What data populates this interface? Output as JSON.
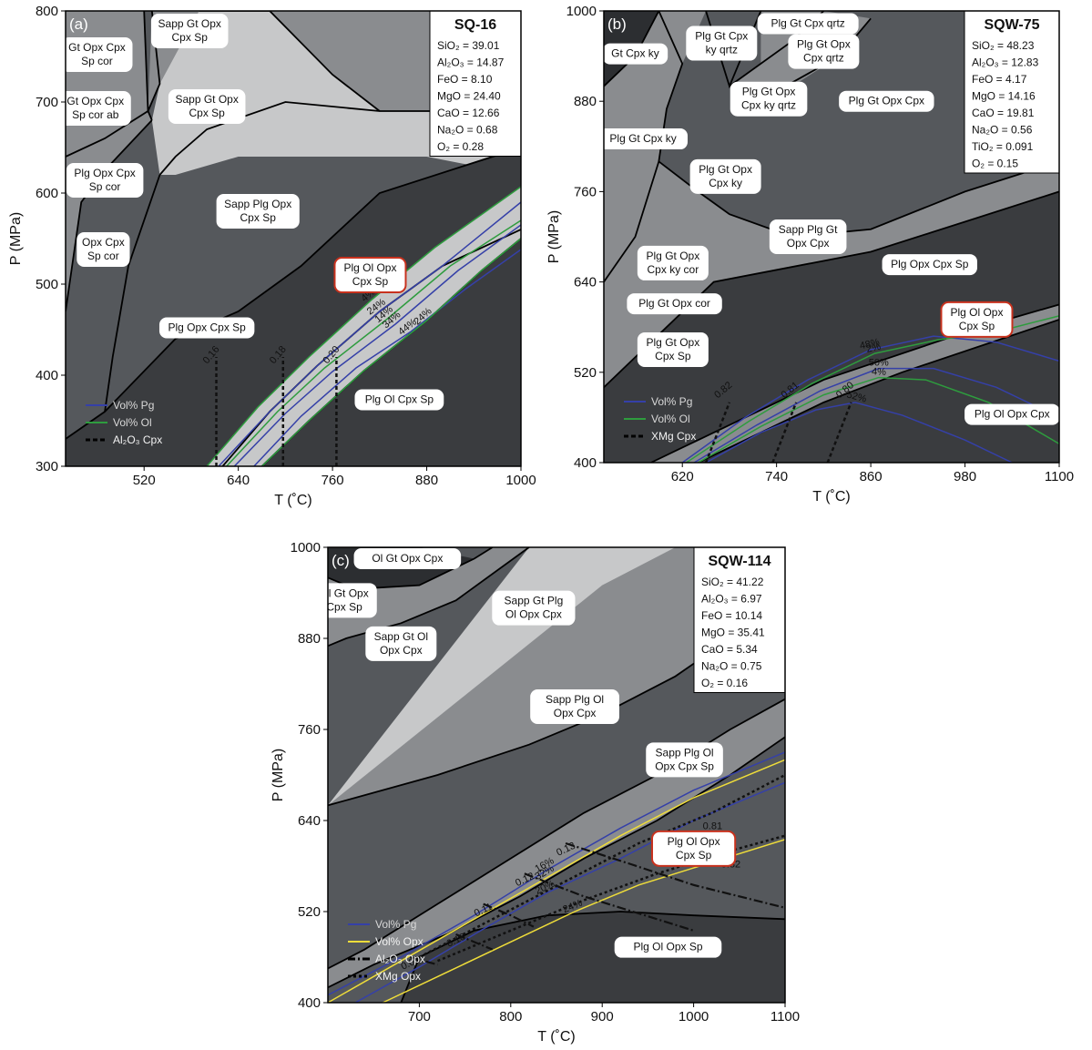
{
  "colors": {
    "field_dark": "#3a3c3f",
    "field_darker": "#2c2e31",
    "field_mid": "#55585c",
    "field_light": "#8a8c8f",
    "field_lighter": "#c7c8c9",
    "boundary": "#000000",
    "pg": "#3540a8",
    "ol": "#2e9c3e",
    "opx": "#efdd3a",
    "highlight_border": "#c8321e"
  },
  "chart_data": [
    {
      "type": "line",
      "panel": "(a)",
      "sample": "SQ-16",
      "xlabel": "T (˚C)",
      "ylabel": "P (MPa)",
      "xlim": [
        420,
        1000
      ],
      "ylim": [
        300,
        800
      ],
      "xticks": [
        520,
        640,
        760,
        880,
        1000
      ],
      "yticks": [
        300,
        400,
        500,
        600,
        700,
        800
      ],
      "composition": [
        "SiO₂ = 39.01",
        "Al₂O₃ = 14.87",
        "FeO = 8.10",
        "MgO = 24.40",
        "CaO = 12.66",
        "Na₂O = 0.68",
        "O₂ = 0.28"
      ],
      "legend": [
        {
          "label": "Vol% Pg",
          "style": "pg"
        },
        {
          "label": "Vol% Ol",
          "style": "ol"
        },
        {
          "label": "Al₂O₃ Cpx",
          "style": "dash"
        }
      ],
      "fields": [
        {
          "label": [
            "Gt Opx Cpx",
            "Sp cor"
          ],
          "T": 460,
          "P": 752
        },
        {
          "label": [
            "Gt Opx Cpx",
            "Sp cor ab"
          ],
          "T": 458,
          "P": 693
        },
        {
          "label": [
            "Sapp Gt Opx",
            "Cpx Sp"
          ],
          "T": 578,
          "P": 778
        },
        {
          "label": [
            "Sapp Gt Opx",
            "Cpx Sp"
          ],
          "T": 600,
          "P": 695
        },
        {
          "label": [
            "Plg Opx Cpx",
            "Sp cor"
          ],
          "T": 470,
          "P": 614
        },
        {
          "label": [
            "Sapp Plg Opx",
            "Cpx Sp"
          ],
          "T": 665,
          "P": 580
        },
        {
          "label": [
            "Opx Cpx",
            "Sp cor"
          ],
          "T": 468,
          "P": 538
        },
        {
          "label": [
            "Plg Ol Opx",
            "Cpx Sp"
          ],
          "T": 808,
          "P": 510,
          "highlight": true
        },
        {
          "label": [
            "Plg Opx Cpx Sp"
          ],
          "T": 600,
          "P": 452
        },
        {
          "label": [
            "Plg Ol Cpx Sp"
          ],
          "T": 845,
          "P": 373
        }
      ],
      "isopleths": [
        {
          "kind": "pg",
          "label": "24%",
          "points": [
            [
              615,
              300
            ],
            [
              680,
              360
            ],
            [
              740,
              410
            ],
            [
              820,
              470
            ],
            [
              900,
              520
            ],
            [
              1000,
              590
            ]
          ]
        },
        {
          "kind": "ol",
          "label": "4%",
          "points": [
            [
              600,
              300
            ],
            [
              665,
              365
            ],
            [
              730,
              420
            ],
            [
              810,
              483
            ],
            [
              890,
              540
            ],
            [
              1000,
              607
            ]
          ]
        },
        {
          "kind": "ol",
          "label": "14%",
          "points": [
            [
              625,
              300
            ],
            [
              690,
              360
            ],
            [
              750,
              408
            ],
            [
              830,
              462
            ],
            [
              910,
              520
            ],
            [
              1000,
              570
            ]
          ]
        },
        {
          "kind": "pg",
          "label": "34%",
          "points": [
            [
              635,
              300
            ],
            [
              700,
              358
            ],
            [
              760,
              404
            ],
            [
              840,
              456
            ],
            [
              920,
              515
            ],
            [
              1000,
              565
            ]
          ]
        },
        {
          "kind": "pg",
          "label": "44%",
          "points": [
            [
              660,
              300
            ],
            [
              720,
              355
            ],
            [
              790,
              408
            ],
            [
              860,
              448
            ],
            [
              930,
              495
            ],
            [
              1000,
              538
            ]
          ]
        },
        {
          "kind": "ol",
          "label": "24%",
          "points": [
            [
              670,
              300
            ],
            [
              730,
              350
            ],
            [
              800,
              405
            ],
            [
              880,
              460
            ],
            [
              950,
              515
            ],
            [
              1000,
              550
            ]
          ]
        }
      ],
      "al2o3_cpx": [
        {
          "value": "0.16",
          "T": 612
        },
        {
          "value": "0.18",
          "T": 697
        },
        {
          "value": "0.20",
          "T": 765
        }
      ]
    },
    {
      "type": "line",
      "panel": "(b)",
      "sample": "SQW-75",
      "xlabel": "T (˚C)",
      "ylabel": "P (MPa)",
      "xlim": [
        520,
        1100
      ],
      "ylim": [
        400,
        1000
      ],
      "xticks": [
        620,
        740,
        860,
        980,
        1100
      ],
      "yticks": [
        400,
        520,
        640,
        760,
        880,
        1000
      ],
      "composition": [
        "SiO₂ = 48.23",
        "Al₂O₃ = 12.83",
        "FeO = 4.17",
        "MgO = 14.16",
        "CaO = 19.81",
        "Na₂O = 0.56",
        "TiO₂ = 0.091",
        "O₂ = 0.15"
      ],
      "legend": [
        {
          "label": "Vol% Pg",
          "style": "pg"
        },
        {
          "label": "Vol% Ol",
          "style": "ol"
        },
        {
          "label": "XMg Cpx",
          "style": "dash"
        }
      ],
      "fields": [
        {
          "label": [
            "Plg Gt Cpx qrtz"
          ],
          "T": 780,
          "P": 983
        },
        {
          "label": [
            "Gt Cpx ky"
          ],
          "T": 560,
          "P": 943
        },
        {
          "label": [
            "Plg Gt Cpx",
            "ky qrtz"
          ],
          "T": 670,
          "P": 957
        },
        {
          "label": [
            "Plg Gt Opx",
            "Cpx qrtz"
          ],
          "T": 800,
          "P": 946
        },
        {
          "label": [
            "Plg Gt Opx",
            "Cpx ky qrtz"
          ],
          "T": 730,
          "P": 883
        },
        {
          "label": [
            "Plg Gt Opx Cpx"
          ],
          "T": 880,
          "P": 880
        },
        {
          "label": [
            "Plg Gt Cpx ky"
          ],
          "T": 570,
          "P": 830
        },
        {
          "label": [
            "Plg Gt Opx",
            "Cpx ky"
          ],
          "T": 675,
          "P": 780
        },
        {
          "label": [
            "Sapp Plg Gt",
            "Opx Cpx"
          ],
          "T": 780,
          "P": 700
        },
        {
          "label": [
            "Plg Gt Opx",
            "Cpx ky cor"
          ],
          "T": 608,
          "P": 665
        },
        {
          "label": [
            "Plg Opx Cpx Sp"
          ],
          "T": 935,
          "P": 663
        },
        {
          "label": [
            "Plg Gt Opx cor"
          ],
          "T": 610,
          "P": 611
        },
        {
          "label": [
            "Plg Ol Opx",
            "Cpx Sp"
          ],
          "T": 995,
          "P": 590,
          "highlight": true
        },
        {
          "label": [
            "Plg Gt Opx",
            "Cpx Sp"
          ],
          "T": 608,
          "P": 550
        },
        {
          "label": [
            "Plg Ol Opx Cpx"
          ],
          "T": 1040,
          "P": 464
        }
      ],
      "isopleths": [
        {
          "kind": "pg",
          "label": "48%",
          "points": [
            [
              620,
              400
            ],
            [
              700,
              460
            ],
            [
              780,
              510
            ],
            [
              860,
              550
            ],
            [
              940,
              568
            ],
            [
              1020,
              560
            ],
            [
              1100,
              535
            ]
          ]
        },
        {
          "kind": "ol",
          "label": "2%",
          "points": [
            [
              625,
              400
            ],
            [
              705,
              455
            ],
            [
              785,
              505
            ],
            [
              865,
              545
            ],
            [
              945,
              563
            ],
            [
              1025,
              575
            ],
            [
              1100,
              595
            ]
          ]
        },
        {
          "kind": "pg",
          "label": "50%",
          "points": [
            [
              635,
              400
            ],
            [
              715,
              450
            ],
            [
              795,
              495
            ],
            [
              870,
              525
            ],
            [
              940,
              525
            ],
            [
              1020,
              500
            ],
            [
              1100,
              460
            ]
          ]
        },
        {
          "kind": "ol",
          "label": "4%",
          "points": [
            [
              640,
              400
            ],
            [
              720,
              448
            ],
            [
              800,
              490
            ],
            [
              870,
              513
            ],
            [
              930,
              510
            ],
            [
              1010,
              480
            ],
            [
              1100,
              425
            ]
          ]
        },
        {
          "kind": "pg",
          "label": "52%",
          "points": [
            [
              650,
              400
            ],
            [
              720,
              440
            ],
            [
              790,
              470
            ],
            [
              840,
              480
            ],
            [
              900,
              463
            ],
            [
              980,
              430
            ],
            [
              1040,
              400
            ]
          ]
        }
      ],
      "xmg_cpx": [
        {
          "value": "0.82",
          "T": 670
        },
        {
          "value": "0.81",
          "T": 755
        },
        {
          "value": "0.80",
          "T": 825
        }
      ]
    },
    {
      "type": "line",
      "panel": "(c)",
      "sample": "SQW-114",
      "xlabel": "T (˚C)",
      "ylabel": "P (MPa)",
      "xlim": [
        600,
        1100
      ],
      "ylim": [
        400,
        1000
      ],
      "xticks": [
        700,
        800,
        900,
        1000,
        1100
      ],
      "yticks": [
        400,
        520,
        640,
        760,
        880,
        1000
      ],
      "composition": [
        "SiO₂ = 41.22",
        "Al₂O₃ = 6.97",
        "FeO = 10.14",
        "MgO = 35.41",
        "CaO = 5.34",
        "Na₂O = 0.75",
        "O₂ = 0.16"
      ],
      "legend": [
        {
          "label": "Vol% Pg",
          "style": "pg"
        },
        {
          "label": "Vol% Opx",
          "style": "opx"
        },
        {
          "label": "Al₂O₃ Opx",
          "style": "dashdot"
        },
        {
          "label": "XMg Opx",
          "style": "dot"
        }
      ],
      "fields": [
        {
          "label": [
            "Ol  Gt  Opx  Cpx"
          ],
          "T": 687,
          "P": 985
        },
        {
          "label": [
            "Ol Gt Opx",
            "Cpx Sp"
          ],
          "T": 618,
          "P": 930
        },
        {
          "label": [
            "Sapp  Gt Plg",
            "Ol  Opx  Cpx"
          ],
          "T": 825,
          "P": 920
        },
        {
          "label": [
            "Sapp Gt Ol",
            "Opx Cpx"
          ],
          "T": 680,
          "P": 873
        },
        {
          "label": [
            "Sapp  Plg  Ol",
            "Opx  Cpx"
          ],
          "T": 870,
          "P": 790
        },
        {
          "label": [
            "Sapp Plg Ol",
            "Opx Cpx  Sp"
          ],
          "T": 990,
          "P": 720
        },
        {
          "label": [
            "Plg  Ol  Opx",
            "Cpx  Sp"
          ],
          "T": 1000,
          "P": 603,
          "highlight": true
        },
        {
          "label": [
            "Plg  Ol  Opx  Sp"
          ],
          "T": 972,
          "P": 473
        }
      ],
      "isopleths": [
        {
          "kind": "pg",
          "label": "16%",
          "points": [
            [
              600,
              410
            ],
            [
              680,
              460
            ],
            [
              760,
              515
            ],
            [
              840,
              575
            ],
            [
              920,
              630
            ],
            [
              1000,
              680
            ],
            [
              1100,
              730
            ]
          ]
        },
        {
          "kind": "opx",
          "label": "32%",
          "points": [
            [
              600,
              400
            ],
            [
              680,
              455
            ],
            [
              760,
              510
            ],
            [
              840,
              565
            ],
            [
              920,
              620
            ],
            [
              1000,
              670
            ],
            [
              1100,
              720
            ]
          ]
        },
        {
          "kind": "pg",
          "label": "20%",
          "points": [
            [
              630,
              400
            ],
            [
              700,
              447
            ],
            [
              770,
              497
            ],
            [
              840,
              545
            ],
            [
              920,
              590
            ],
            [
              1000,
              640
            ],
            [
              1100,
              690
            ]
          ]
        },
        {
          "kind": "opx",
          "label": "24%",
          "points": [
            [
              660,
              400
            ],
            [
              730,
              440
            ],
            [
              800,
              480
            ],
            [
              870,
              520
            ],
            [
              940,
              555
            ],
            [
              1020,
              585
            ],
            [
              1100,
              615
            ]
          ]
        }
      ],
      "xmg_opx": [
        {
          "value": "0.81",
          "points": [
            [
              700,
              460
            ],
            [
              780,
              510
            ],
            [
              860,
              560
            ],
            [
              940,
              610
            ],
            [
              1020,
              650
            ],
            [
              1100,
              700
            ]
          ]
        },
        {
          "value": "0.82",
          "points": [
            [
              720,
              455
            ],
            [
              800,
              495
            ],
            [
              880,
              535
            ],
            [
              960,
              570
            ],
            [
              1040,
              600
            ],
            [
              1100,
              620
            ]
          ]
        }
      ],
      "al2o3_opx": [
        {
          "value": "0.09",
          "points": [
            [
              690,
              460
            ],
            [
              705,
              455
            ],
            [
              720,
              450
            ]
          ]
        },
        {
          "value": "0.10",
          "points": [
            [
              740,
              490
            ],
            [
              760,
              480
            ],
            [
              780,
              470
            ]
          ]
        },
        {
          "value": "0.11",
          "points": [
            [
              770,
              530
            ],
            [
              800,
              515
            ],
            [
              825,
              500
            ]
          ]
        },
        {
          "value": "0.12",
          "points": [
            [
              815,
              570
            ],
            [
              880,
              540
            ],
            [
              960,
              510
            ],
            [
              1000,
              495
            ]
          ]
        },
        {
          "value": "0.13",
          "points": [
            [
              860,
              610
            ],
            [
              930,
              583
            ],
            [
              1000,
              555
            ],
            [
              1100,
              525
            ]
          ]
        }
      ]
    }
  ]
}
